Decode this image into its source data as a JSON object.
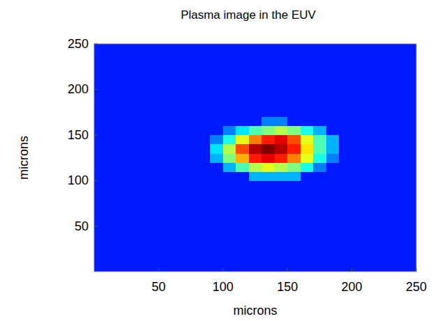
{
  "chart_data": {
    "type": "heatmap",
    "title": "Plasma image in the EUV",
    "x_label": "microns",
    "y_label": "microns",
    "xlim": [
      0,
      250
    ],
    "ylim": [
      0,
      250
    ],
    "xticks": [
      50,
      100,
      150,
      200,
      250
    ],
    "yticks": [
      50,
      100,
      150,
      200,
      250
    ],
    "color_range": [
      0,
      1
    ],
    "cells": [
      [
        0.15,
        0.15,
        0.15,
        0.15,
        0.15,
        0.15,
        0.15,
        0.15,
        0.15,
        0.15,
        0.15,
        0.15,
        0.15,
        0.15,
        0.15,
        0.15,
        0.15,
        0.15,
        0.15,
        0.15,
        0.15,
        0.15,
        0.15,
        0.15,
        0.15
      ],
      [
        0.15,
        0.15,
        0.15,
        0.15,
        0.15,
        0.15,
        0.15,
        0.15,
        0.15,
        0.15,
        0.15,
        0.15,
        0.15,
        0.15,
        0.15,
        0.15,
        0.15,
        0.15,
        0.15,
        0.15,
        0.15,
        0.15,
        0.15,
        0.15,
        0.15
      ],
      [
        0.15,
        0.15,
        0.15,
        0.15,
        0.15,
        0.15,
        0.15,
        0.15,
        0.15,
        0.15,
        0.15,
        0.15,
        0.15,
        0.15,
        0.15,
        0.15,
        0.15,
        0.15,
        0.15,
        0.15,
        0.15,
        0.15,
        0.15,
        0.15,
        0.15
      ],
      [
        0.15,
        0.15,
        0.15,
        0.15,
        0.15,
        0.15,
        0.15,
        0.15,
        0.15,
        0.15,
        0.15,
        0.15,
        0.15,
        0.15,
        0.15,
        0.15,
        0.15,
        0.15,
        0.15,
        0.15,
        0.15,
        0.15,
        0.15,
        0.15,
        0.15
      ],
      [
        0.15,
        0.15,
        0.15,
        0.15,
        0.15,
        0.15,
        0.15,
        0.15,
        0.15,
        0.15,
        0.15,
        0.15,
        0.15,
        0.15,
        0.15,
        0.15,
        0.15,
        0.15,
        0.15,
        0.15,
        0.15,
        0.15,
        0.15,
        0.15,
        0.15
      ],
      [
        0.15,
        0.15,
        0.15,
        0.15,
        0.15,
        0.15,
        0.15,
        0.15,
        0.15,
        0.15,
        0.15,
        0.15,
        0.15,
        0.15,
        0.15,
        0.15,
        0.15,
        0.15,
        0.15,
        0.15,
        0.15,
        0.15,
        0.15,
        0.15,
        0.15
      ],
      [
        0.15,
        0.15,
        0.15,
        0.15,
        0.15,
        0.15,
        0.15,
        0.15,
        0.15,
        0.15,
        0.15,
        0.15,
        0.15,
        0.15,
        0.15,
        0.15,
        0.15,
        0.15,
        0.15,
        0.15,
        0.15,
        0.15,
        0.15,
        0.15,
        0.15
      ],
      [
        0.15,
        0.15,
        0.15,
        0.15,
        0.15,
        0.15,
        0.15,
        0.15,
        0.15,
        0.15,
        0.15,
        0.15,
        0.15,
        0.15,
        0.15,
        0.15,
        0.15,
        0.15,
        0.15,
        0.15,
        0.15,
        0.15,
        0.15,
        0.15,
        0.15
      ],
      [
        0.15,
        0.15,
        0.15,
        0.15,
        0.15,
        0.15,
        0.15,
        0.15,
        0.15,
        0.15,
        0.15,
        0.15,
        0.15,
        0.15,
        0.15,
        0.15,
        0.15,
        0.15,
        0.15,
        0.15,
        0.15,
        0.15,
        0.15,
        0.15,
        0.15
      ],
      [
        0.15,
        0.15,
        0.15,
        0.15,
        0.15,
        0.15,
        0.15,
        0.15,
        0.15,
        0.15,
        0.15,
        0.15,
        0.15,
        0.15,
        0.15,
        0.15,
        0.15,
        0.15,
        0.15,
        0.15,
        0.15,
        0.15,
        0.15,
        0.15,
        0.15
      ],
      [
        0.15,
        0.15,
        0.15,
        0.15,
        0.15,
        0.15,
        0.15,
        0.15,
        0.15,
        0.15,
        0.15,
        0.15,
        0.3,
        0.3,
        0.3,
        0.3,
        0.15,
        0.15,
        0.15,
        0.15,
        0.15,
        0.15,
        0.15,
        0.15,
        0.15
      ],
      [
        0.15,
        0.15,
        0.15,
        0.15,
        0.15,
        0.15,
        0.15,
        0.15,
        0.15,
        0.15,
        0.3,
        0.45,
        0.55,
        0.6,
        0.55,
        0.5,
        0.4,
        0.25,
        0.15,
        0.15,
        0.15,
        0.15,
        0.15,
        0.15,
        0.15
      ],
      [
        0.15,
        0.15,
        0.15,
        0.15,
        0.15,
        0.15,
        0.15,
        0.15,
        0.15,
        0.3,
        0.5,
        0.7,
        0.85,
        0.9,
        0.85,
        0.75,
        0.6,
        0.4,
        0.25,
        0.15,
        0.15,
        0.15,
        0.15,
        0.15,
        0.15
      ],
      [
        0.15,
        0.15,
        0.15,
        0.15,
        0.15,
        0.15,
        0.15,
        0.15,
        0.15,
        0.35,
        0.55,
        0.8,
        0.95,
        1.0,
        0.95,
        0.85,
        0.65,
        0.45,
        0.3,
        0.15,
        0.15,
        0.15,
        0.15,
        0.15,
        0.15
      ],
      [
        0.15,
        0.15,
        0.15,
        0.15,
        0.15,
        0.15,
        0.15,
        0.15,
        0.15,
        0.25,
        0.4,
        0.6,
        0.75,
        0.85,
        0.9,
        0.8,
        0.6,
        0.45,
        0.3,
        0.15,
        0.15,
        0.15,
        0.15,
        0.15,
        0.15
      ],
      [
        0.15,
        0.15,
        0.15,
        0.15,
        0.15,
        0.15,
        0.15,
        0.15,
        0.15,
        0.15,
        0.25,
        0.35,
        0.45,
        0.5,
        0.55,
        0.5,
        0.4,
        0.3,
        0.15,
        0.15,
        0.15,
        0.15,
        0.15,
        0.15,
        0.15
      ],
      [
        0.15,
        0.15,
        0.15,
        0.15,
        0.15,
        0.15,
        0.15,
        0.15,
        0.15,
        0.15,
        0.15,
        0.15,
        0.15,
        0.25,
        0.25,
        0.15,
        0.15,
        0.15,
        0.15,
        0.15,
        0.15,
        0.15,
        0.15,
        0.15,
        0.15
      ],
      [
        0.15,
        0.15,
        0.15,
        0.15,
        0.15,
        0.15,
        0.15,
        0.15,
        0.15,
        0.15,
        0.15,
        0.15,
        0.15,
        0.15,
        0.15,
        0.15,
        0.15,
        0.15,
        0.15,
        0.15,
        0.15,
        0.15,
        0.15,
        0.15,
        0.15
      ],
      [
        0.15,
        0.15,
        0.15,
        0.15,
        0.15,
        0.15,
        0.15,
        0.15,
        0.15,
        0.15,
        0.15,
        0.15,
        0.15,
        0.15,
        0.15,
        0.15,
        0.15,
        0.15,
        0.15,
        0.15,
        0.15,
        0.15,
        0.15,
        0.15,
        0.15
      ],
      [
        0.15,
        0.15,
        0.15,
        0.15,
        0.15,
        0.15,
        0.15,
        0.15,
        0.15,
        0.15,
        0.15,
        0.15,
        0.15,
        0.15,
        0.15,
        0.15,
        0.15,
        0.15,
        0.15,
        0.15,
        0.15,
        0.15,
        0.15,
        0.15,
        0.15
      ],
      [
        0.15,
        0.15,
        0.15,
        0.15,
        0.15,
        0.15,
        0.15,
        0.15,
        0.15,
        0.15,
        0.15,
        0.15,
        0.15,
        0.15,
        0.15,
        0.15,
        0.15,
        0.15,
        0.15,
        0.15,
        0.15,
        0.15,
        0.15,
        0.15,
        0.15
      ],
      [
        0.15,
        0.15,
        0.15,
        0.15,
        0.15,
        0.15,
        0.15,
        0.15,
        0.15,
        0.15,
        0.15,
        0.15,
        0.15,
        0.15,
        0.15,
        0.15,
        0.15,
        0.15,
        0.15,
        0.15,
        0.15,
        0.15,
        0.15,
        0.15,
        0.15
      ],
      [
        0.15,
        0.15,
        0.15,
        0.15,
        0.15,
        0.15,
        0.15,
        0.15,
        0.15,
        0.15,
        0.15,
        0.15,
        0.15,
        0.15,
        0.15,
        0.15,
        0.15,
        0.15,
        0.15,
        0.15,
        0.15,
        0.15,
        0.15,
        0.15,
        0.15
      ],
      [
        0.15,
        0.15,
        0.15,
        0.15,
        0.15,
        0.15,
        0.15,
        0.15,
        0.15,
        0.15,
        0.15,
        0.15,
        0.15,
        0.15,
        0.15,
        0.15,
        0.15,
        0.15,
        0.15,
        0.15,
        0.15,
        0.15,
        0.15,
        0.15,
        0.15
      ],
      [
        0.15,
        0.15,
        0.15,
        0.15,
        0.15,
        0.15,
        0.15,
        0.15,
        0.15,
        0.15,
        0.15,
        0.15,
        0.15,
        0.15,
        0.15,
        0.15,
        0.15,
        0.15,
        0.15,
        0.15,
        0.15,
        0.15,
        0.15,
        0.15,
        0.15
      ]
    ]
  }
}
